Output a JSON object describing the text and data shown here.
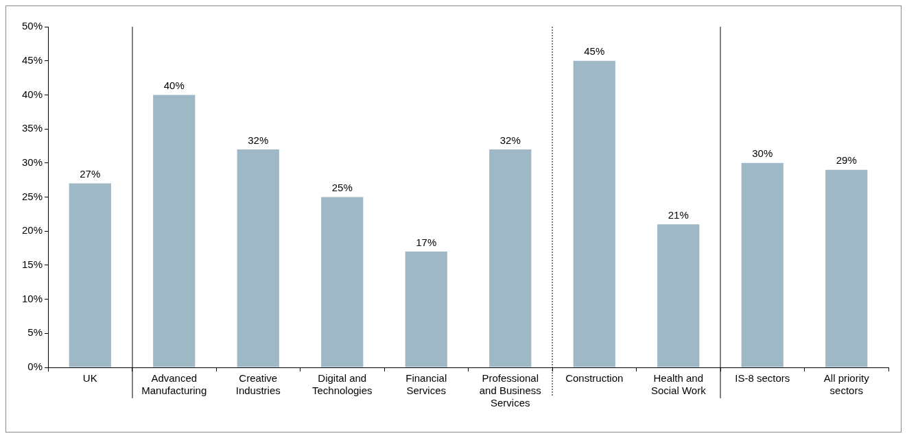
{
  "chart_data": {
    "type": "bar",
    "categories": [
      "UK",
      "Advanced Manufacturing",
      "Creative Industries",
      "Digital and Technologies",
      "Financial Services",
      "Professional and Business Services",
      "Construction",
      "Health and Social Work",
      "IS-8 sectors",
      "All priority sectors"
    ],
    "values": [
      27,
      40,
      32,
      25,
      17,
      32,
      45,
      21,
      30,
      29
    ],
    "value_labels": [
      "27%",
      "40%",
      "32%",
      "25%",
      "17%",
      "32%",
      "45%",
      "21%",
      "30%",
      "29%"
    ],
    "color": "#9fb8c6",
    "ylim": [
      0,
      50
    ],
    "yticks": [
      {
        "value": 0,
        "label": "0%"
      },
      {
        "value": 5,
        "label": "5%"
      },
      {
        "value": 10,
        "label": "10%"
      },
      {
        "value": 15,
        "label": "15%"
      },
      {
        "value": 20,
        "label": "20%"
      },
      {
        "value": 25,
        "label": "25%"
      },
      {
        "value": 30,
        "label": "30%"
      },
      {
        "value": 35,
        "label": "35%"
      },
      {
        "value": 40,
        "label": "40%"
      },
      {
        "value": 45,
        "label": "45%"
      },
      {
        "value": 50,
        "label": "50%"
      }
    ],
    "grid": false,
    "legend": false
  }
}
